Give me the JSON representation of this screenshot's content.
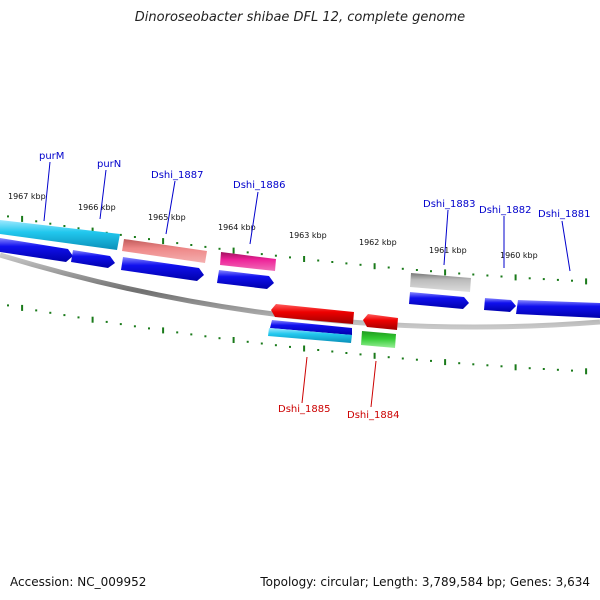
{
  "title": "Dinoroseobacter shibae DFL 12, complete genome",
  "footer": {
    "accession": "Accession: NC_009952",
    "topology": "Topology: circular; Length: 3,789,584 bp; Genes: 3,634"
  },
  "colors": {
    "backbone": "#808080",
    "tick": "#1a7a1a",
    "label_forward": "#0000cc",
    "label_reverse": "#cc0000",
    "cds_blue": "#0000ee",
    "gene_cyan": "#22c8ee",
    "gene_salmon": "#ee8888",
    "gene_magenta": "#ee2299",
    "gene_gray": "#bbbbbb",
    "gene_red": "#ee0000",
    "gene_green": "#33cc33"
  },
  "scale_labels": [
    "1967 kbp",
    "1966 kbp",
    "1965 kbp",
    "1964 kbp",
    "1963 kbp",
    "1962 kbp",
    "1961 kbp",
    "1960 kbp"
  ],
  "genes_forward": [
    "purM",
    "purN",
    "Dshi_1887",
    "Dshi_1886",
    "Dshi_1883",
    "Dshi_1882",
    "Dshi_1881"
  ],
  "genes_reverse": [
    "Dshi_1885",
    "Dshi_1884"
  ]
}
